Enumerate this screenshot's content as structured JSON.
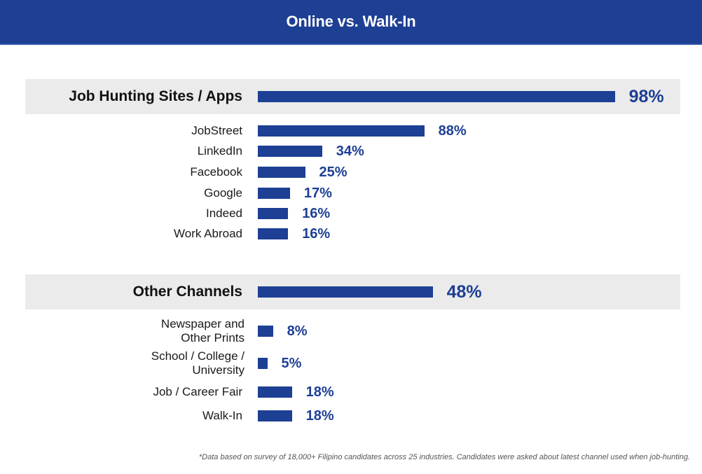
{
  "chart_data": {
    "type": "bar",
    "orientation": "horizontal",
    "title": "Online vs. Walk-In",
    "unit": "%",
    "groups": [
      {
        "name": "Job Hunting Sites / Apps",
        "value": 98,
        "value_label": "98%",
        "categories": [
          "JobStreet",
          "LinkedIn",
          "Facebook",
          "Google",
          "Indeed",
          "Work Abroad"
        ],
        "values": [
          88,
          34,
          25,
          17,
          16,
          16
        ],
        "value_labels": [
          "88%",
          "34%",
          "25%",
          "17%",
          "16%",
          "16%"
        ]
      },
      {
        "name": "Other Channels",
        "value": 48,
        "value_label": "48%",
        "categories": [
          "Newspaper and Other Prints",
          "School / College / University",
          "Job / Career Fair",
          "Walk-In"
        ],
        "category_lines": [
          [
            "Newspaper and",
            "Other Prints"
          ],
          [
            "School / College /",
            "University"
          ],
          [
            "Job / Career Fair"
          ],
          [
            "Walk-In"
          ]
        ],
        "values": [
          8,
          5,
          18,
          18
        ],
        "value_labels": [
          "8%",
          "5%",
          "18%",
          "18%"
        ]
      }
    ],
    "xlabel": "",
    "ylabel": "",
    "xlim": [
      0,
      100
    ],
    "grid": false,
    "legend": "none",
    "footnote": "*Data based on survey of 18,000+ Filipino candidates across 25 industries. Candidates were asked about latest channel used when job-hunting."
  },
  "colors": {
    "header_bg": "#1d3f94",
    "bar": "#1d3f94",
    "value_text": "#1d3f94",
    "band_bg": "#ebebeb"
  }
}
